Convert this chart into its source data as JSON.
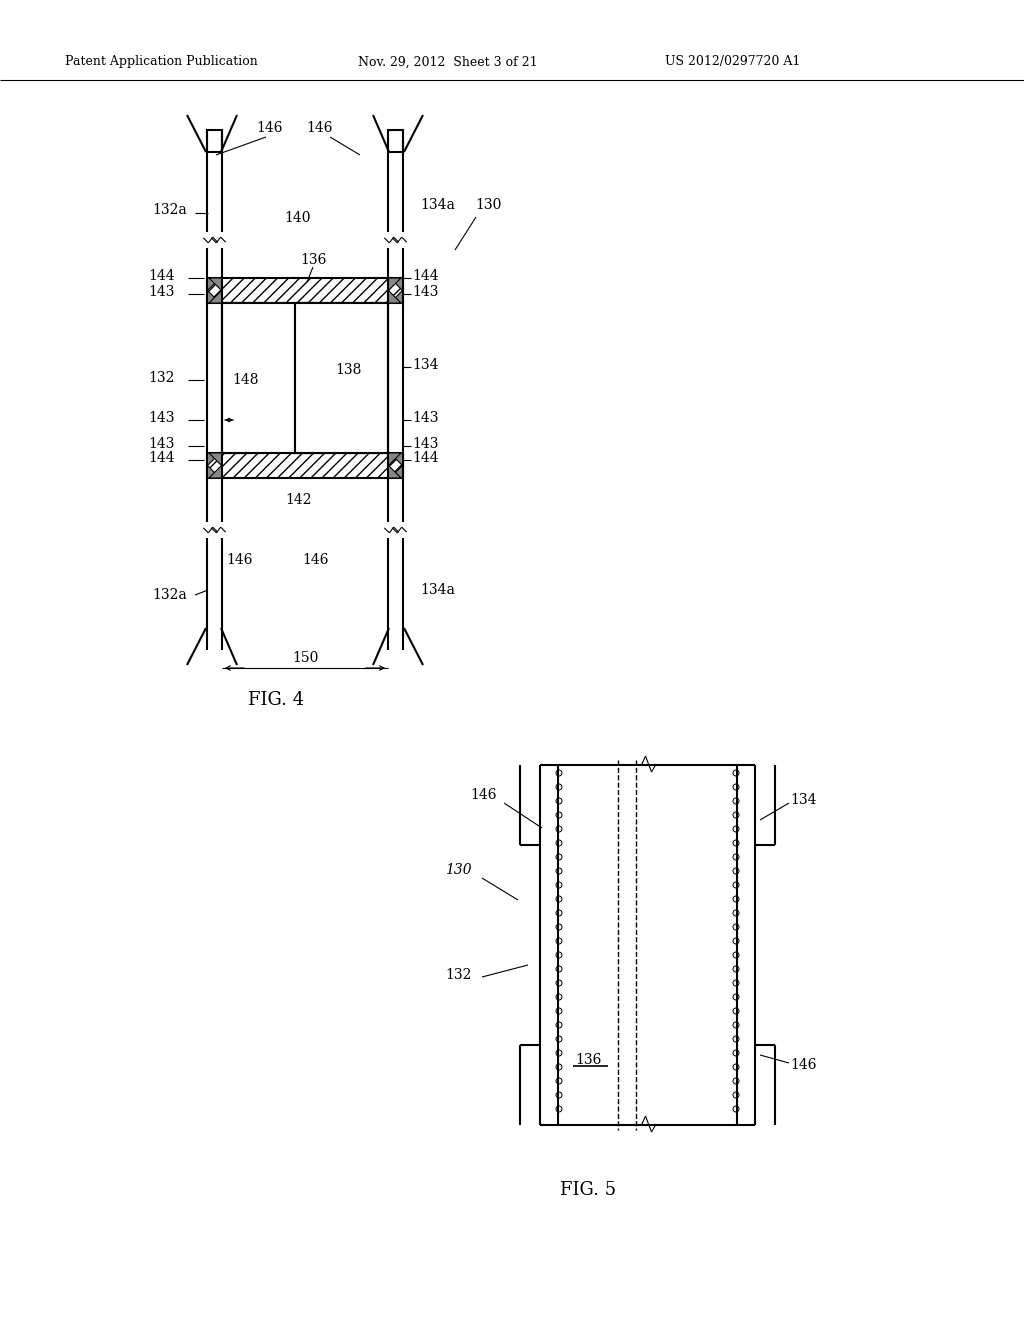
{
  "background_color": "#ffffff",
  "header_text": "Patent Application Publication",
  "header_date": "Nov. 29, 2012  Sheet 3 of 21",
  "header_patent": "US 2012/0297720 A1",
  "fig4_label": "FIG. 4",
  "fig5_label": "FIG. 5",
  "line_color": "#000000",
  "text_color": "#000000"
}
